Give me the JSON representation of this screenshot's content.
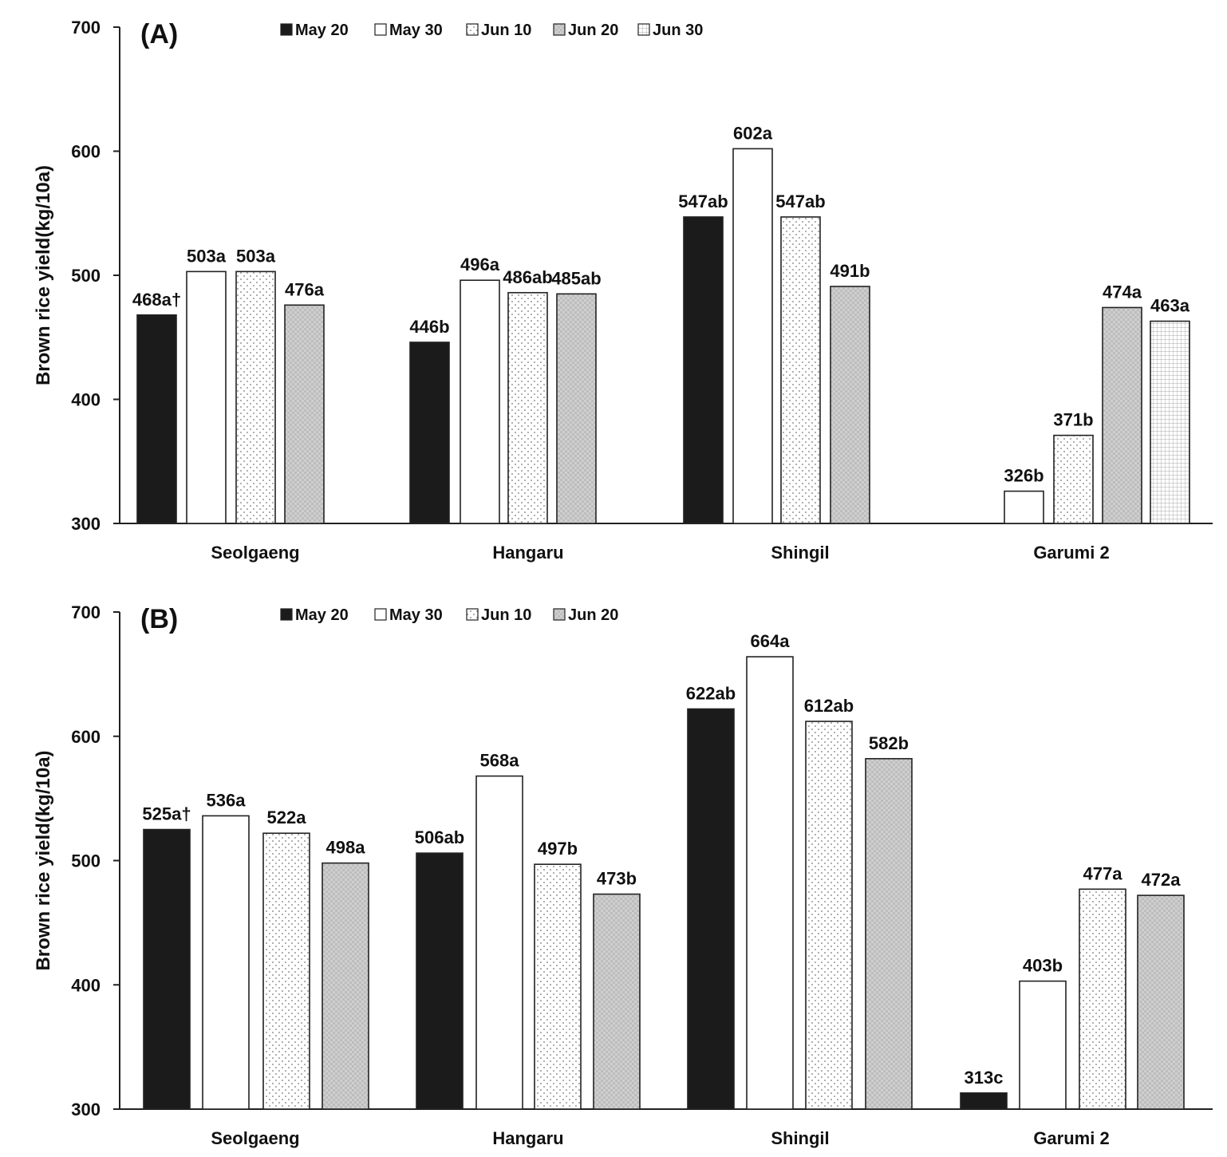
{
  "chart_data": [
    {
      "type": "bar",
      "panel": "(A)",
      "ylabel": "Brown rice yield(kg/10a)",
      "ylim": [
        300,
        700
      ],
      "yticks": [
        300,
        400,
        500,
        600,
        700
      ],
      "categories": [
        "Seolgaeng",
        "Hangaru",
        "Shingil",
        "Garumi 2"
      ],
      "legend": [
        "May 20",
        "May 30",
        "Jun 10",
        "Jun 20",
        "Jun 30"
      ],
      "series": [
        {
          "name": "May 20",
          "pattern": "solid-black",
          "values": [
            468,
            446,
            547,
            null
          ],
          "labels": [
            "468a†",
            "446b",
            "547ab",
            ""
          ]
        },
        {
          "name": "May 30",
          "pattern": "white",
          "values": [
            503,
            496,
            602,
            326
          ],
          "labels": [
            "503a",
            "496a",
            "602a",
            "326b"
          ]
        },
        {
          "name": "Jun 10",
          "pattern": "dots",
          "values": [
            503,
            486,
            547,
            371
          ],
          "labels": [
            "503a",
            "486ab",
            "547ab",
            "371b"
          ]
        },
        {
          "name": "Jun 20",
          "pattern": "checker",
          "values": [
            476,
            485,
            491,
            474
          ],
          "labels": [
            "476a",
            "485ab",
            "491b",
            "474a"
          ]
        },
        {
          "name": "Jun 30",
          "pattern": "grid",
          "values": [
            null,
            null,
            null,
            463
          ],
          "labels": [
            "",
            "",
            "",
            "463a"
          ]
        }
      ]
    },
    {
      "type": "bar",
      "panel": "(B)",
      "ylabel": "Brown rice yield(kg/10a)",
      "ylim": [
        300,
        700
      ],
      "yticks": [
        300,
        400,
        500,
        600,
        700
      ],
      "categories": [
        "Seolgaeng",
        "Hangaru",
        "Shingil",
        "Garumi 2"
      ],
      "legend": [
        "May 20",
        "May 30",
        "Jun 10",
        "Jun 20"
      ],
      "series": [
        {
          "name": "May 20",
          "pattern": "solid-black",
          "values": [
            525,
            506,
            622,
            313
          ],
          "labels": [
            "525a†",
            "506ab",
            "622ab",
            "313c"
          ]
        },
        {
          "name": "May 30",
          "pattern": "white",
          "values": [
            536,
            568,
            664,
            403
          ],
          "labels": [
            "536a",
            "568a",
            "664a",
            "403b"
          ]
        },
        {
          "name": "Jun 10",
          "pattern": "dots",
          "values": [
            522,
            497,
            612,
            477
          ],
          "labels": [
            "522a",
            "497b",
            "612ab",
            "477a"
          ]
        },
        {
          "name": "Jun 20",
          "pattern": "checker",
          "values": [
            498,
            473,
            582,
            472
          ],
          "labels": [
            "498a",
            "473b",
            "582b",
            "472a"
          ]
        }
      ]
    }
  ]
}
